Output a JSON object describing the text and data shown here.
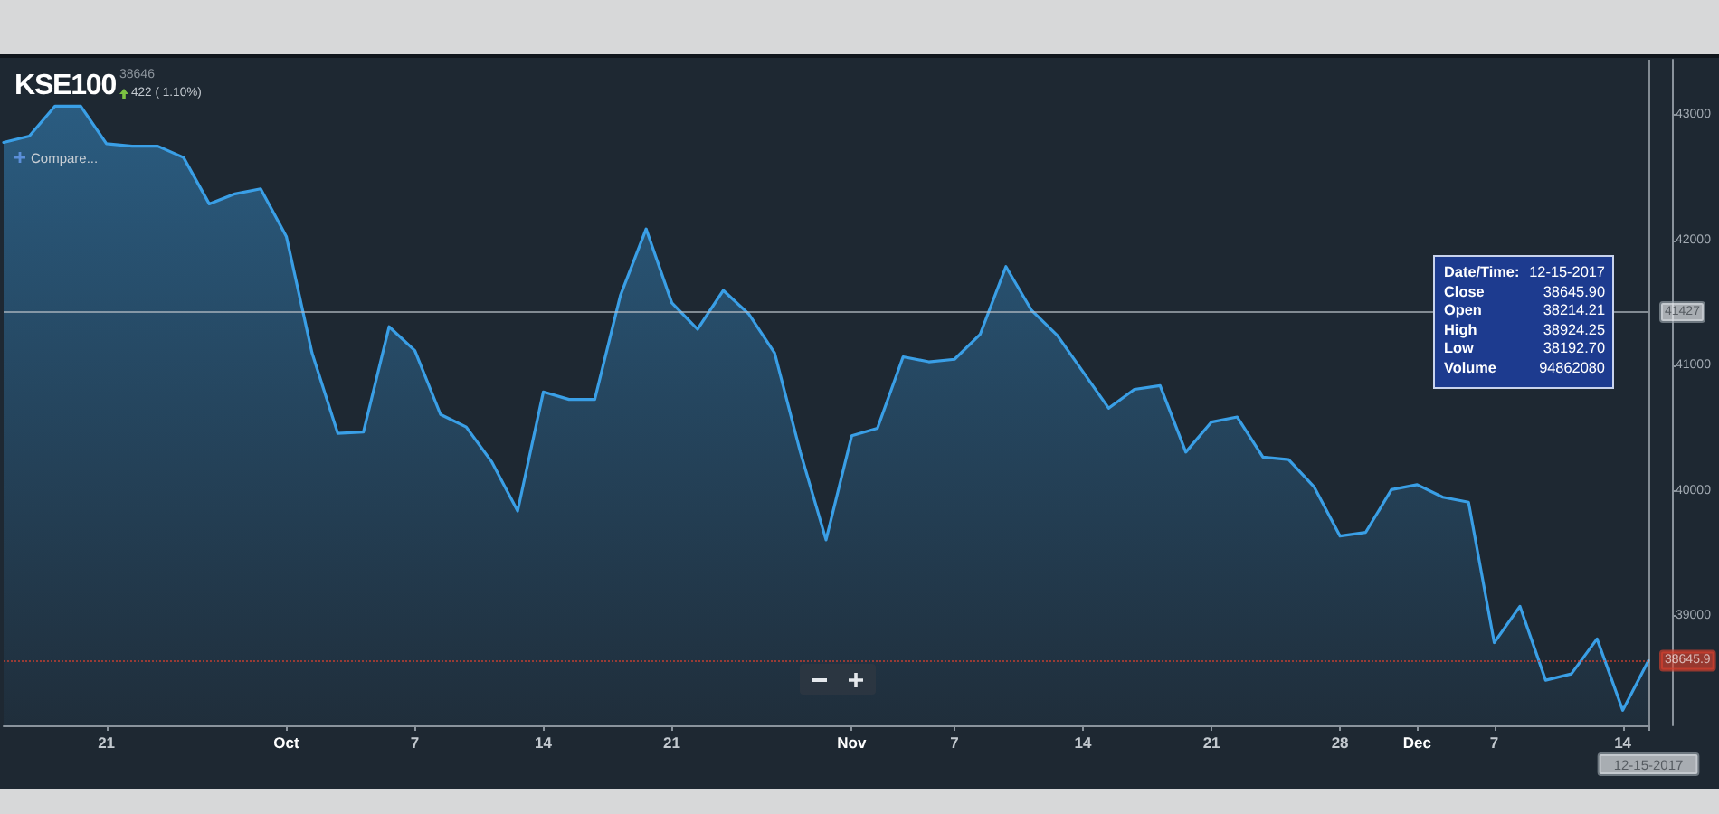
{
  "chart_data": {
    "type": "area",
    "title": "KSE100",
    "subtitle": "38646",
    "categories": [
      null,
      null,
      null,
      null,
      "21",
      null,
      null,
      null,
      null,
      null,
      null,
      "Oct",
      null,
      null,
      null,
      null,
      "7",
      null,
      null,
      null,
      null,
      "14",
      null,
      null,
      null,
      null,
      "21",
      null,
      null,
      null,
      null,
      null,
      null,
      "Nov",
      null,
      null,
      null,
      "7",
      null,
      null,
      null,
      null,
      "14",
      null,
      null,
      null,
      null,
      "21",
      null,
      null,
      null,
      null,
      "28",
      null,
      null,
      "Dec",
      null,
      null,
      "7",
      null,
      null,
      null,
      null,
      "14",
      "12-15-2017"
    ],
    "values": [
      42780,
      42830,
      43070,
      43070,
      42770,
      42750,
      42750,
      42660,
      42290,
      42370,
      42410,
      42030,
      41100,
      40460,
      40470,
      41310,
      41120,
      40610,
      40510,
      40230,
      39840,
      40790,
      40730,
      40730,
      41560,
      42090,
      41500,
      41290,
      41600,
      41410,
      41100,
      40310,
      39610,
      40440,
      40500,
      41070,
      41030,
      41050,
      41250,
      41790,
      41440,
      41240,
      40950,
      40660,
      40810,
      40840,
      40310,
      40550,
      40590,
      40270,
      40250,
      40030,
      39640,
      39670,
      40010,
      40050,
      39950,
      39910,
      38790,
      39080,
      38490,
      38540,
      38820,
      38250,
      38645.9
    ],
    "color": "#3a9fe6",
    "ylim": [
      38130,
      43440
    ],
    "yticks": [
      39000,
      40000,
      41000,
      42000,
      43000
    ],
    "ref_lines": [
      {
        "axis": "y",
        "value": 41427,
        "label": "41427",
        "color": "#b9c0c7"
      },
      {
        "axis": "y",
        "value": 38645.9,
        "label": "38645.9",
        "color": "#d9402e",
        "line_style": "dotted"
      },
      {
        "axis": "x",
        "value": "12-15-2017",
        "color": "#b9c0c7"
      }
    ],
    "annotations": [
      "422 ( 1.10%)",
      "Compare...",
      "Date/Time: 12-15-2017\nClose 38645.90\nOpen 38214.21\nHigh 38924.25\nLow 38192.70\nVolume 94862080"
    ]
  }
}
